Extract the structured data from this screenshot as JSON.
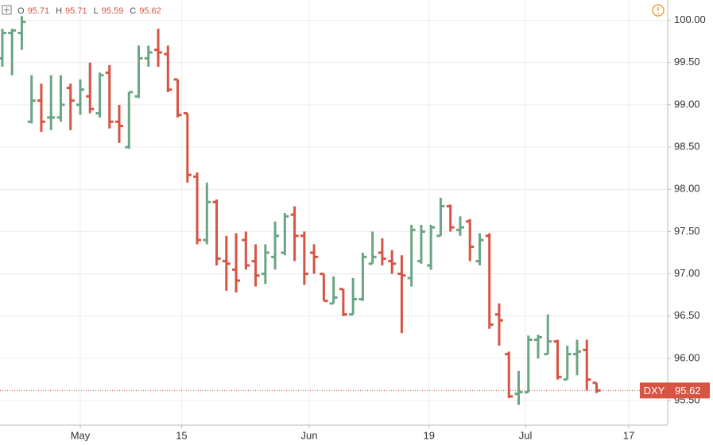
{
  "chart_data": {
    "type": "ohlc",
    "symbol": "DXY",
    "legend_labels": [
      "O",
      "H",
      "L",
      "C"
    ],
    "up_color": "#6ba583",
    "down_color": "#d75442",
    "open": [
      99.55,
      99.85,
      99.85,
      98.8,
      99.05,
      98.85,
      98.85,
      99.2,
      99.0,
      99.1,
      98.9,
      99.38,
      98.8,
      98.5,
      99.1,
      99.55,
      99.65,
      99.6,
      99.3,
      98.9,
      98.15,
      97.4,
      97.85,
      97.15,
      97.05,
      97.4,
      97.15,
      97.0,
      97.2,
      97.25,
      97.7,
      97.45,
      97.25,
      97.0,
      96.65,
      96.82,
      96.52,
      96.7,
      97.12,
      97.25,
      97.15,
      97.0,
      96.95,
      97.15,
      97.1,
      97.45,
      97.8,
      97.52,
      97.62,
      97.15,
      97.45,
      96.52,
      96.05,
      95.58,
      95.6,
      96.22,
      96.05,
      96.2,
      95.75,
      96.05,
      96.1,
      95.71
    ],
    "high": [
      99.9,
      99.9,
      100.05,
      99.35,
      99.25,
      99.35,
      99.35,
      99.25,
      99.3,
      99.5,
      99.38,
      99.47,
      99.0,
      99.15,
      99.7,
      99.7,
      99.9,
      99.7,
      99.3,
      98.9,
      98.2,
      98.08,
      97.88,
      97.45,
      97.48,
      97.5,
      97.35,
      97.35,
      97.62,
      97.72,
      97.8,
      97.5,
      97.35,
      97.0,
      96.97,
      96.82,
      96.95,
      97.25,
      97.5,
      97.42,
      97.28,
      97.22,
      97.58,
      97.58,
      97.58,
      97.9,
      97.82,
      97.68,
      97.65,
      97.48,
      97.48,
      96.65,
      96.08,
      95.85,
      96.27,
      96.28,
      96.52,
      96.22,
      96.15,
      96.22,
      96.22,
      95.71
    ],
    "low": [
      99.45,
      99.35,
      99.65,
      98.78,
      98.68,
      98.7,
      98.8,
      98.7,
      98.88,
      98.9,
      98.85,
      98.72,
      98.55,
      98.48,
      99.08,
      99.45,
      99.45,
      99.15,
      98.85,
      98.08,
      97.35,
      97.35,
      97.1,
      96.8,
      96.78,
      97.05,
      96.85,
      96.88,
      97.05,
      97.22,
      97.15,
      96.87,
      97.0,
      96.68,
      96.65,
      96.5,
      96.52,
      96.68,
      97.12,
      97.1,
      97.0,
      96.3,
      96.85,
      97.12,
      97.05,
      97.45,
      97.5,
      97.45,
      97.15,
      97.1,
      96.35,
      96.15,
      95.53,
      95.45,
      95.6,
      96.0,
      96.05,
      95.75,
      95.75,
      95.8,
      95.62,
      95.59
    ],
    "close": [
      99.85,
      99.88,
      99.98,
      99.05,
      98.8,
      98.85,
      99.0,
      99.05,
      99.18,
      98.95,
      99.35,
      98.8,
      98.75,
      99.15,
      99.55,
      99.62,
      99.62,
      99.18,
      98.88,
      98.17,
      97.4,
      97.85,
      97.18,
      97.12,
      96.92,
      97.1,
      96.98,
      97.25,
      97.45,
      97.68,
      97.45,
      97.0,
      97.2,
      96.68,
      96.72,
      96.52,
      96.7,
      97.2,
      97.2,
      97.18,
      97.12,
      96.98,
      97.52,
      97.5,
      97.55,
      97.8,
      97.55,
      97.55,
      97.32,
      97.4,
      96.4,
      96.45,
      95.55,
      95.6,
      96.22,
      96.25,
      96.2,
      95.78,
      96.05,
      96.08,
      95.75,
      95.62
    ],
    "ylim": [
      95.21,
      100.24
    ],
    "yticks": [
      {
        "value": 95.5,
        "label": "95.50"
      },
      {
        "value": 96,
        "label": "96.00"
      },
      {
        "value": 96.5,
        "label": "96.50"
      },
      {
        "value": 97,
        "label": "97.00"
      },
      {
        "value": 97.5,
        "label": "97.50"
      },
      {
        "value": 98,
        "label": "98.00"
      },
      {
        "value": 98.5,
        "label": "98.50"
      },
      {
        "value": 99,
        "label": "99.00"
      },
      {
        "value": 99.5,
        "label": "99.50"
      },
      {
        "value": 100,
        "label": "100.00"
      }
    ],
    "xlim": [
      -0.24,
      68.3
    ],
    "xticks": [
      {
        "value": 8,
        "label": "May"
      },
      {
        "value": 18.4,
        "label": "15"
      },
      {
        "value": 31.5,
        "label": "Jun"
      },
      {
        "value": 43.8,
        "label": "19"
      },
      {
        "value": 53.7,
        "label": "Jul"
      },
      {
        "value": 64.3,
        "label": "17"
      }
    ],
    "grid": true
  }
}
